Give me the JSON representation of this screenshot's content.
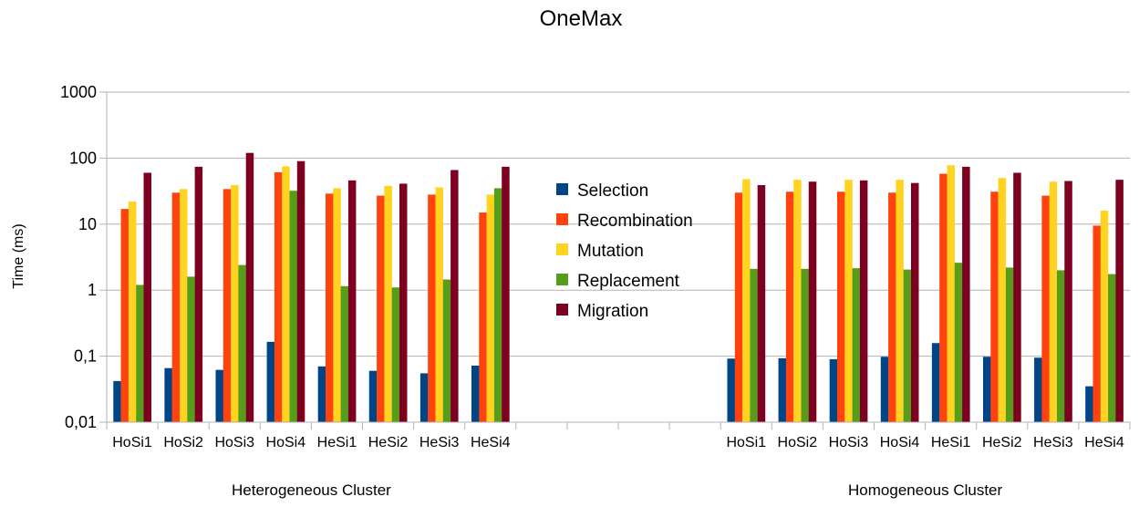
{
  "chart_data": {
    "type": "bar",
    "title": "OneMax",
    "ylabel": "Time (ms)",
    "yscale": "log",
    "ylim": [
      0.01,
      1000
    ],
    "yticks": [
      "0,01",
      "0,1",
      "1",
      "10",
      "100",
      "1000"
    ],
    "grid": true,
    "legend_position": "center",
    "groups": [
      "Heterogeneous Cluster",
      "Homogeneous Cluster"
    ],
    "categories": [
      "HoSi1",
      "HoSi2",
      "HoSi3",
      "HoSi4",
      "HeSi1",
      "HeSi2",
      "HeSi3",
      "HeSi4",
      "",
      "",
      "",
      "",
      "HoSi1",
      "HoSi2",
      "HoSi3",
      "HoSi4",
      "HeSi1",
      "HeSi2",
      "HeSi3",
      "HeSi4"
    ],
    "series": [
      {
        "name": "Selection",
        "color": "#004586",
        "values": [
          0.042,
          0.066,
          0.062,
          0.165,
          0.07,
          0.06,
          0.055,
          0.072,
          null,
          null,
          null,
          null,
          0.092,
          0.093,
          0.09,
          0.098,
          0.158,
          0.098,
          0.095,
          0.035
        ]
      },
      {
        "name": "Recombination",
        "color": "#ff420e",
        "values": [
          17,
          30,
          34,
          61,
          29,
          27,
          28,
          15,
          null,
          null,
          null,
          null,
          30,
          31,
          31,
          30,
          58,
          31,
          27,
          9.5
        ]
      },
      {
        "name": "Mutation",
        "color": "#ffd320",
        "values": [
          22,
          34,
          39,
          75,
          35,
          38,
          36,
          28,
          null,
          null,
          null,
          null,
          48,
          47,
          47,
          47,
          78,
          50,
          44,
          16
        ]
      },
      {
        "name": "Replacement",
        "color": "#579d1c",
        "values": [
          1.2,
          1.6,
          2.4,
          32,
          1.15,
          1.1,
          1.45,
          35,
          null,
          null,
          null,
          null,
          2.1,
          2.1,
          2.15,
          2.05,
          2.6,
          2.2,
          2.0,
          1.75
        ]
      },
      {
        "name": "Migration",
        "color": "#7e0021",
        "values": [
          60,
          74,
          120,
          90,
          46,
          41,
          66,
          74,
          null,
          null,
          null,
          null,
          39,
          44,
          46,
          42,
          74,
          60,
          45,
          47
        ]
      }
    ]
  }
}
